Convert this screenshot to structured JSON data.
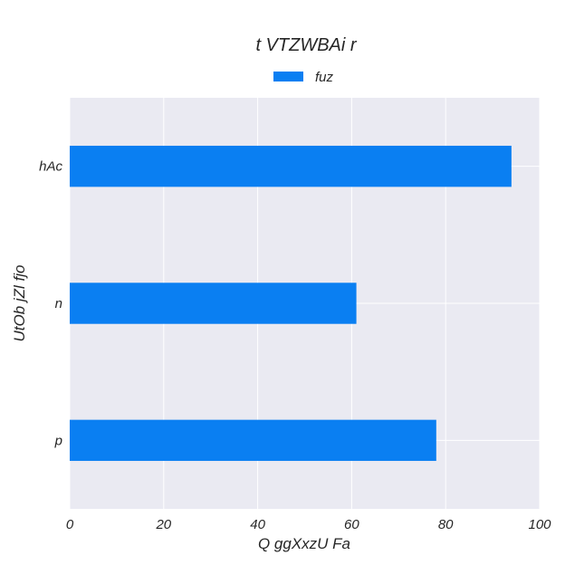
{
  "chart_data": {
    "type": "bar",
    "orientation": "horizontal",
    "title": "t VTZWBAi   r",
    "xlabel": "Q ggXxzU  Fa",
    "ylabel": "UtOb jZl fjo",
    "categories": [
      "hAc",
      "n",
      "p"
    ],
    "series": [
      {
        "name": "fuz",
        "values": [
          94,
          61,
          78
        ],
        "color": "#0a7ff2"
      }
    ],
    "xlim": [
      0,
      100
    ],
    "xticks": [
      "0",
      "20",
      "40",
      "60",
      "80",
      "100"
    ],
    "grid": true,
    "legend": {
      "position": "top-center"
    },
    "background_color": "#eaeaf2",
    "grid_color": "#ffffff"
  }
}
